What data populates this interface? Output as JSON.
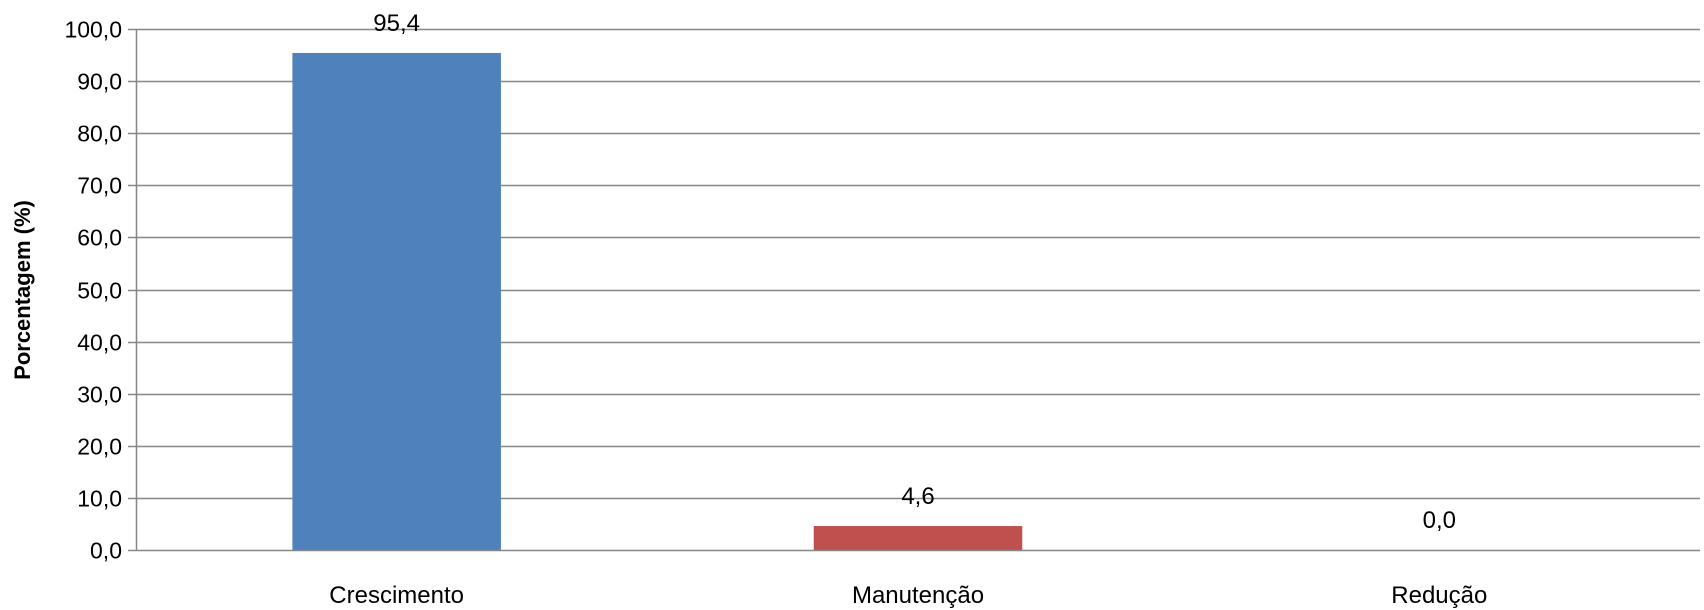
{
  "chart_data": {
    "type": "bar",
    "title": "",
    "xlabel": "",
    "ylabel": "Porcentagem (%)",
    "categories": [
      "Crescimento",
      "Manutenção",
      "Redução"
    ],
    "values": [
      95.4,
      4.6,
      0.0
    ],
    "value_labels": [
      "95,4",
      "4,6",
      "0,0"
    ],
    "colors": [
      "#4F81BD",
      "#C0504D",
      "#9BBB59"
    ],
    "ylim": [
      0,
      100
    ],
    "ytick_step": 10,
    "ytick_labels": [
      "0,0",
      "10,0",
      "20,0",
      "30,0",
      "40,0",
      "50,0",
      "60,0",
      "70,0",
      "80,0",
      "90,0",
      "100,0"
    ],
    "grid": true,
    "legend": "none"
  }
}
